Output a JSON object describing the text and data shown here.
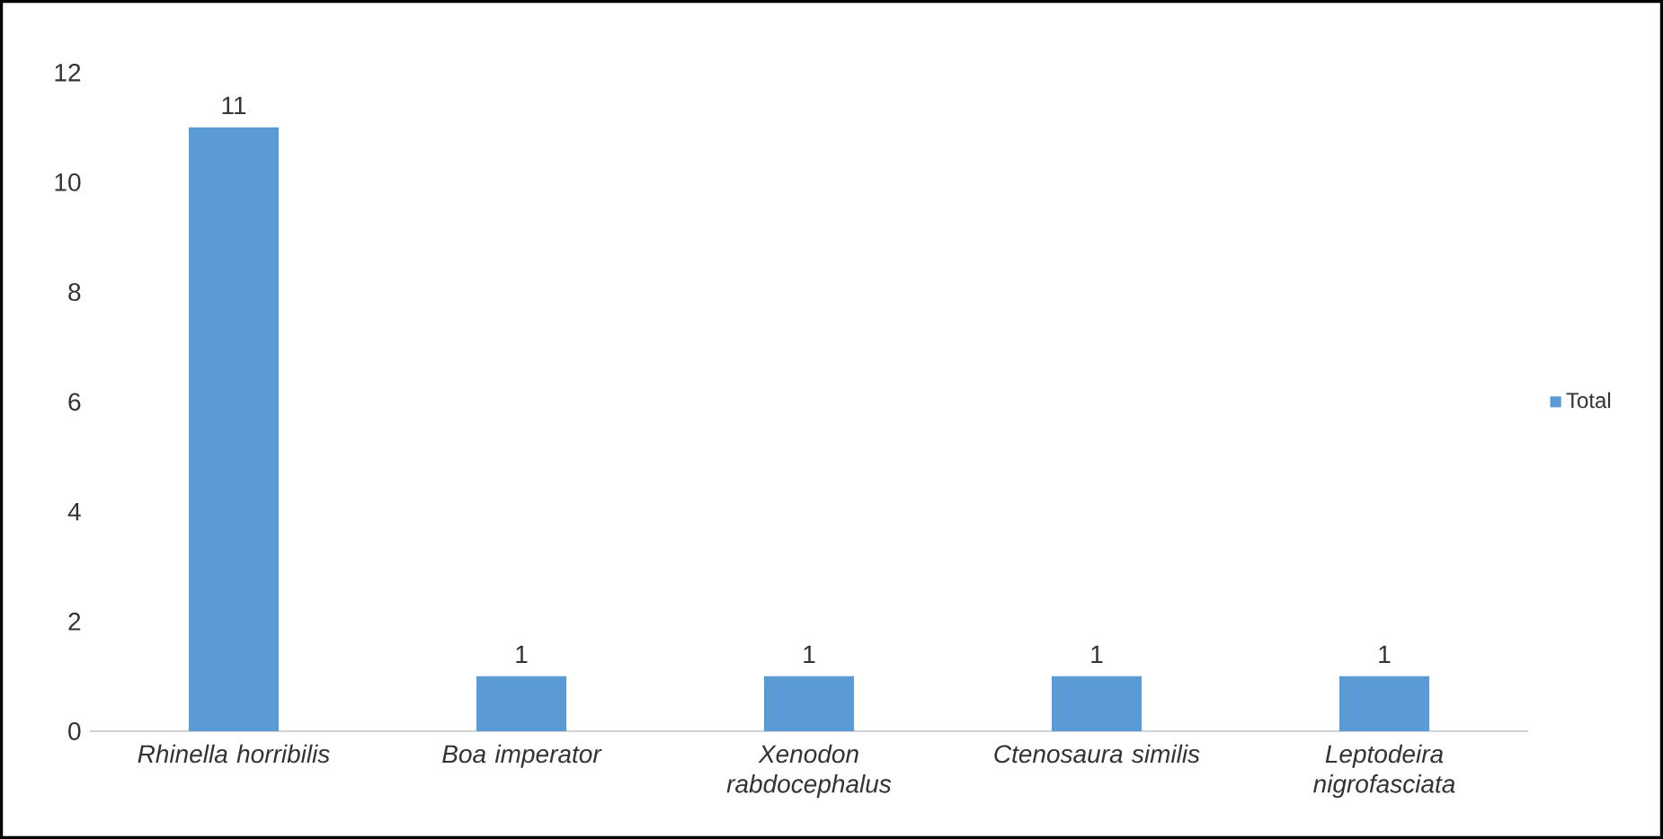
{
  "chart_data": {
    "type": "bar",
    "categories": [
      "Rhinella horribilis",
      "Boa imperator",
      "Xenodon rabdocephalus",
      "Ctenosaura similis",
      "Leptodeira nigrofasciata"
    ],
    "series": [
      {
        "name": "Total",
        "color": "#5b9bd5",
        "values": [
          11,
          1,
          1,
          1,
          1
        ]
      }
    ],
    "ylim": [
      0,
      12
    ],
    "yticks": [
      0,
      2,
      4,
      6,
      8,
      10,
      12
    ],
    "grid": false,
    "legend": "right",
    "data_labels": true
  }
}
